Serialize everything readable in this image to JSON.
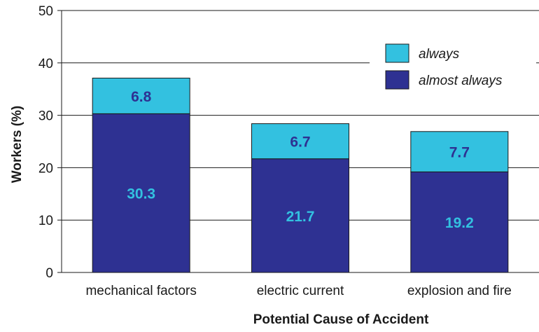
{
  "chart_data": {
    "type": "bar",
    "stacked": true,
    "categories": [
      "mechanical factors",
      "electric current",
      "explosion and fire"
    ],
    "series": [
      {
        "name": "almost always",
        "values": [
          30.3,
          21.7,
          19.2
        ],
        "color": "#2e3192",
        "label_color": "#33c1e0"
      },
      {
        "name": "always",
        "values": [
          6.8,
          6.7,
          7.7
        ],
        "color": "#33c1e0",
        "label_color": "#2e3192"
      }
    ],
    "title": "",
    "xlabel": "Potential Cause of Accident",
    "ylabel": "Workers (%)",
    "ylim": [
      0,
      50
    ],
    "yticks": [
      "0",
      "10",
      "20",
      "30",
      "40",
      "50"
    ],
    "grid": true,
    "legend_position": "top-right",
    "legend_order": [
      "always",
      "almost always"
    ]
  }
}
